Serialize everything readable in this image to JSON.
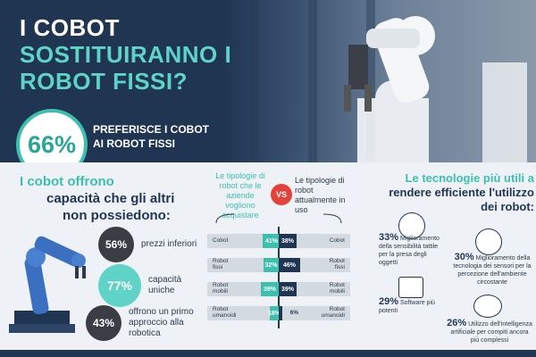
{
  "header": {
    "title_lines": [
      "I COBOT",
      "SOSTITUIRANNO I",
      "ROBOT FISSI?"
    ],
    "highlight_value": "66%",
    "highlight_text_lines": [
      "PREFERISCE I COBOT",
      "AI ROBOT FISSI"
    ]
  },
  "left_section": {
    "title_lines": [
      "I cobot offrono",
      "capacità che gli altri",
      "non possiedono:"
    ],
    "stats": [
      {
        "value": "56%",
        "text": "prezzi inferiori"
      },
      {
        "value": "77%",
        "text": "capacità uniche"
      },
      {
        "value": "43%",
        "text": "offrono un primo approccio alla robotica"
      }
    ]
  },
  "middle_section": {
    "left_heading": "Le tipologie di robot che le aziende vogliono acquistare",
    "vs_label": "VS",
    "right_heading": "Le tipologie di robot attualmente in uso",
    "rows": [
      {
        "label": "Cobot",
        "want": "41%",
        "use": "38%"
      },
      {
        "label": "Robot fissi",
        "want": "32%",
        "use": "46%"
      },
      {
        "label": "Robot mobili",
        "want": "39%",
        "use": "39%"
      },
      {
        "label": "Robot umanoidi",
        "want": "18%",
        "use": "6%"
      }
    ]
  },
  "right_section": {
    "title_lines": [
      "Le tecnologie più utili a",
      "rendere efficiente l'utilizzo",
      "dei robot:"
    ],
    "items": [
      {
        "value": "33%",
        "text": "Miglioramento della sensibilità tattile per la presa degli oggetti"
      },
      {
        "value": "30%",
        "text": "Miglioramento della tecnologia dei sensori per la percezione dell'ambiente circostante"
      },
      {
        "value": "29%",
        "text": "Software più potenti"
      },
      {
        "value": "26%",
        "text": "Utilizzo dell'intelligenza artificiale per compiti ancora più complessi"
      }
    ]
  },
  "colors": {
    "navy": "#1f3552",
    "teal": "#3dbfae",
    "light_teal": "#5fd3c6",
    "red": "#e5413b",
    "background": "#eef2f6"
  }
}
